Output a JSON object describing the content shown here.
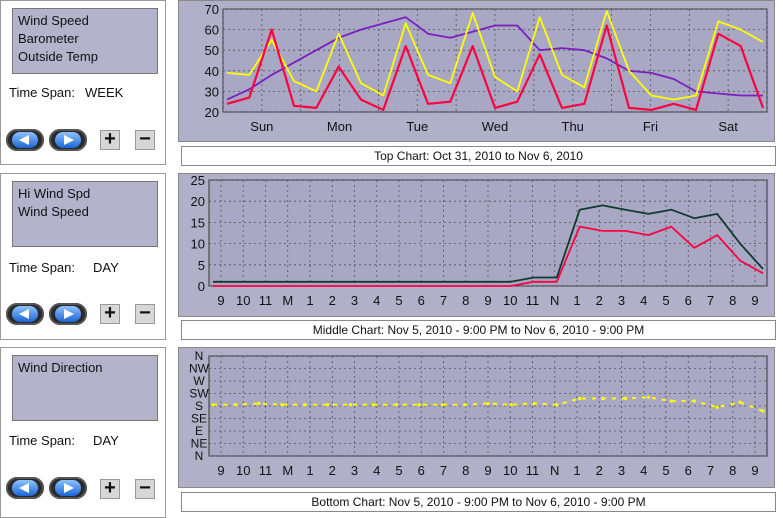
{
  "panels": [
    {
      "sensors": [
        "Wind Speed",
        "Barometer",
        "Outside Temp"
      ],
      "time_span_label": "Time Span:",
      "time_span_value": "WEEK"
    },
    {
      "sensors": [
        "Hi Wind Spd",
        "Wind Speed"
      ],
      "time_span_label": "Time Span:",
      "time_span_value": "DAY"
    },
    {
      "sensors": [
        "Wind Direction"
      ],
      "time_span_label": "Time Span:",
      "time_span_value": "DAY"
    }
  ],
  "buttons": {
    "plus": "+",
    "minus": "−"
  },
  "icons": {
    "back": "back-arrow-icon",
    "forward": "forward-arrow-icon"
  },
  "colors": {
    "panel_bg": "#b3b3cc",
    "chart_bg": "#b0b0c8",
    "wind": "#ff0040",
    "barometer": "#7a1fbf",
    "temp": "#ffff00",
    "hiwind": "#0f3a30",
    "direction": "#ffff00"
  },
  "captions": {
    "top": "Top Chart:  Oct 31, 2010  to  Nov 6, 2010",
    "middle": "Middle Chart:  Nov 5, 2010 - 9:00 PM  to  Nov 6, 2010 - 9:00 PM",
    "bottom": "Bottom Chart:  Nov 5, 2010 - 9:00 PM  to  Nov 6, 2010 - 9:00 PM"
  },
  "chart_data": [
    {
      "type": "line",
      "x_labels": [
        "Sun",
        "Mon",
        "Tue",
        "Wed",
        "Thu",
        "Fri",
        "Sat"
      ],
      "ylim": [
        20,
        70
      ],
      "y_ticks": [
        20,
        30,
        40,
        50,
        60,
        70
      ],
      "grid": true,
      "series": [
        {
          "key": "barometer",
          "color": "#7a1fbf",
          "values": [
            26,
            31,
            38,
            44,
            50,
            56,
            60,
            63,
            66,
            58,
            56,
            59,
            62,
            62,
            50,
            51,
            50,
            46,
            40,
            39,
            36,
            30,
            29,
            28,
            28
          ]
        },
        {
          "key": "temp",
          "color": "#ffff00",
          "values": [
            39,
            38,
            55,
            35,
            30,
            58,
            34,
            28,
            63,
            38,
            34,
            68,
            37,
            30,
            66,
            38,
            32,
            69,
            40,
            28,
            26,
            28,
            64,
            60,
            54
          ]
        },
        {
          "key": "wind",
          "color": "#ff0040",
          "values": [
            24,
            27,
            60,
            23,
            22,
            42,
            26,
            21,
            52,
            24,
            25,
            52,
            22,
            25,
            48,
            22,
            24,
            62,
            22,
            21,
            24,
            21,
            58,
            52,
            22
          ]
        }
      ]
    },
    {
      "type": "line",
      "x_labels": [
        "9",
        "10",
        "11",
        "M",
        "1",
        "2",
        "3",
        "4",
        "5",
        "6",
        "7",
        "8",
        "9",
        "10",
        "11",
        "N",
        "1",
        "2",
        "3",
        "4",
        "5",
        "6",
        "7",
        "8",
        "9"
      ],
      "ylim": [
        0,
        25
      ],
      "y_ticks": [
        0,
        5,
        10,
        15,
        20,
        25
      ],
      "grid": true,
      "series": [
        {
          "key": "hiwind",
          "color": "#0f3a30",
          "values": [
            1,
            1,
            1,
            1,
            1,
            1,
            1,
            1,
            1,
            1,
            1,
            1,
            1,
            1,
            2,
            2,
            18,
            19,
            18,
            17,
            18,
            16,
            17,
            10,
            4
          ]
        },
        {
          "key": "wind",
          "color": "#ff0040",
          "values": [
            0,
            0,
            0,
            0,
            0,
            0,
            0,
            0,
            0,
            0,
            0,
            0,
            0,
            0,
            1,
            1,
            14,
            13,
            13,
            12,
            14,
            9,
            12,
            6,
            3
          ]
        }
      ]
    },
    {
      "type": "scatter",
      "x_labels": [
        "9",
        "10",
        "11",
        "M",
        "1",
        "2",
        "3",
        "4",
        "5",
        "6",
        "7",
        "8",
        "9",
        "10",
        "11",
        "N",
        "1",
        "2",
        "3",
        "4",
        "5",
        "6",
        "7",
        "8",
        "9"
      ],
      "y_labels": [
        "N",
        "NW",
        "W",
        "SW",
        "S",
        "SE",
        "E",
        "NE",
        "N"
      ],
      "grid": true,
      "series": [
        {
          "key": "direction",
          "color": "#ffff00",
          "values": [
            3.9,
            3.9,
            3.8,
            3.9,
            3.9,
            3.9,
            3.9,
            3.9,
            3.9,
            3.9,
            3.9,
            3.9,
            3.8,
            3.9,
            3.8,
            3.9,
            3.4,
            3.4,
            3.4,
            3.3,
            3.6,
            3.6,
            4.1,
            3.7,
            4.4
          ]
        }
      ]
    }
  ]
}
